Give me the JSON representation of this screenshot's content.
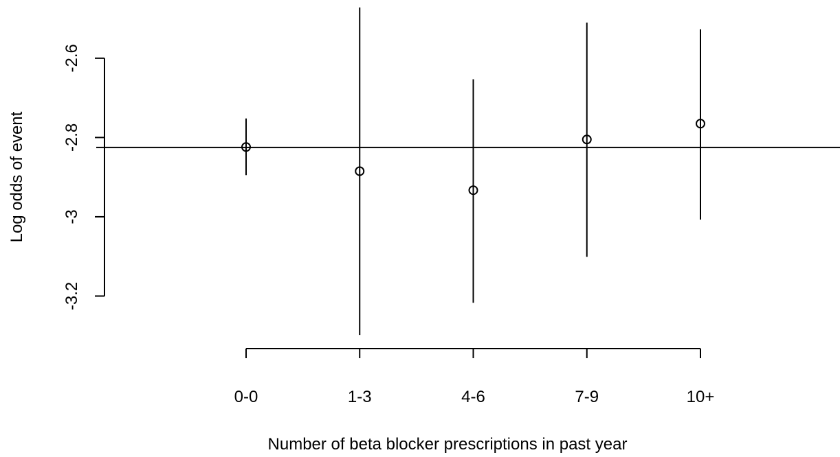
{
  "chart_data": {
    "type": "errorbar",
    "x_label": "Number of beta blocker prescriptions in past year",
    "y_label": "Log odds of event",
    "categories": [
      "0-0",
      "1-3",
      "4-6",
      "7-9",
      "10+"
    ],
    "series": [
      {
        "color": "#000000",
        "values": [
          -2.824,
          -2.885,
          -2.933,
          -2.805,
          -2.765
        ],
        "low": [
          -2.895,
          -3.298,
          -3.217,
          -3.101,
          -3.007
        ],
        "high": [
          -2.752,
          -2.472,
          -2.653,
          -2.51,
          -2.527
        ]
      }
    ],
    "reference_line": -2.825,
    "ylim": [
      -3.31,
      -2.467
    ],
    "yticks": [
      -3.2,
      -3.0,
      -2.8,
      -2.6
    ]
  }
}
